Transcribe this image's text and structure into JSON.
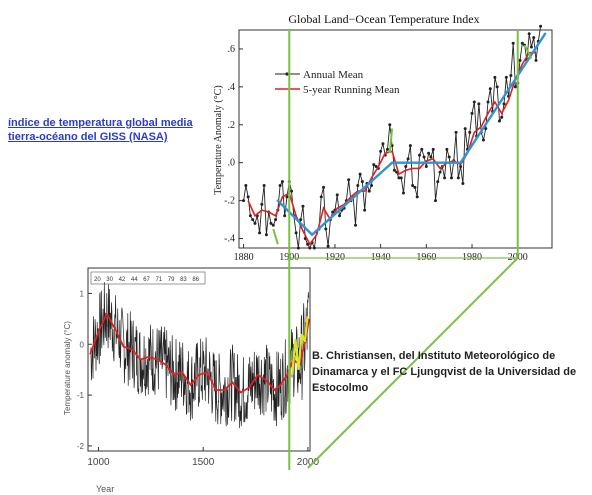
{
  "link_text": "índice de temperatura global media tierra-océano del GISS (NASA)",
  "credit_text": "B. Christiansen, del Instituto Meteorológico de Dinamarca y el FC Ljungqvist de la Universidad de Estocolmo",
  "colors": {
    "annual": "#222222",
    "running": "#dd2222",
    "trend": "#2f93d6",
    "highlight": "#7ac143",
    "link": "#2a3cc8",
    "proxy": "#d8e81c"
  },
  "chart_data": [
    {
      "type": "line",
      "title": "Global Land−Ocean Temperature Index",
      "xlabel": "",
      "ylabel": "Temperature Anomaly (°C)",
      "xlim": [
        1878,
        2015
      ],
      "ylim": [
        -0.45,
        0.7
      ],
      "xticks": [
        "1880",
        "1900",
        "1920",
        "1940",
        "1960",
        "1980",
        "2000"
      ],
      "xtick_values": [
        1880,
        1900,
        1920,
        1940,
        1960,
        1980,
        2000
      ],
      "yticks": [
        ".6",
        ".4",
        ".2",
        ".0",
        "-.2",
        "-.4"
      ],
      "ytick_values": [
        0.6,
        0.4,
        0.2,
        0.0,
        -0.2,
        -0.4
      ],
      "legend_position": "top-left",
      "series": [
        {
          "name": "Annual Mean",
          "x": [
            1880,
            1881,
            1882,
            1883,
            1884,
            1885,
            1886,
            1887,
            1888,
            1889,
            1890,
            1891,
            1892,
            1893,
            1894,
            1895,
            1896,
            1897,
            1898,
            1899,
            1900,
            1901,
            1902,
            1903,
            1904,
            1905,
            1906,
            1907,
            1908,
            1909,
            1910,
            1911,
            1912,
            1913,
            1914,
            1915,
            1916,
            1917,
            1918,
            1919,
            1920,
            1921,
            1922,
            1923,
            1924,
            1925,
            1926,
            1927,
            1928,
            1929,
            1930,
            1931,
            1932,
            1933,
            1934,
            1935,
            1936,
            1937,
            1938,
            1939,
            1940,
            1941,
            1942,
            1943,
            1944,
            1945,
            1946,
            1947,
            1948,
            1949,
            1950,
            1951,
            1952,
            1953,
            1954,
            1955,
            1956,
            1957,
            1958,
            1959,
            1960,
            1961,
            1962,
            1963,
            1964,
            1965,
            1966,
            1967,
            1968,
            1969,
            1970,
            1971,
            1972,
            1973,
            1974,
            1975,
            1976,
            1977,
            1978,
            1979,
            1980,
            1981,
            1982,
            1983,
            1984,
            1985,
            1986,
            1987,
            1988,
            1989,
            1990,
            1991,
            1992,
            1993,
            1994,
            1995,
            1996,
            1997,
            1998,
            1999,
            2000,
            2001,
            2002,
            2003,
            2004,
            2005,
            2006,
            2007,
            2008,
            2009,
            2010
          ],
          "values": [
            -0.2,
            -0.12,
            -0.18,
            -0.28,
            -0.3,
            -0.32,
            -0.28,
            -0.37,
            -0.22,
            -0.12,
            -0.38,
            -0.26,
            -0.32,
            -0.33,
            -0.3,
            -0.25,
            -0.12,
            -0.1,
            -0.28,
            -0.18,
            -0.1,
            -0.15,
            -0.28,
            -0.37,
            -0.45,
            -0.3,
            -0.23,
            -0.4,
            -0.43,
            -0.45,
            -0.42,
            -0.45,
            -0.36,
            -0.35,
            -0.18,
            -0.13,
            -0.35,
            -0.44,
            -0.3,
            -0.26,
            -0.25,
            -0.17,
            -0.28,
            -0.25,
            -0.24,
            -0.2,
            -0.09,
            -0.2,
            -0.18,
            -0.33,
            -0.12,
            -0.06,
            -0.1,
            -0.25,
            -0.11,
            -0.15,
            -0.12,
            -0.01,
            -0.02,
            -0.03,
            0.06,
            0.1,
            0.04,
            0.07,
            0.2,
            0.09,
            -0.04,
            -0.05,
            -0.08,
            -0.08,
            -0.16,
            -0.02,
            0.02,
            0.09,
            -0.12,
            -0.13,
            -0.18,
            0.04,
            0.07,
            0.03,
            -0.02,
            0.05,
            0.03,
            0.07,
            -0.2,
            -0.1,
            -0.05,
            -0.02,
            -0.08,
            0.07,
            0.03,
            -0.08,
            0.01,
            0.16,
            -0.08,
            -0.02,
            -0.11,
            0.18,
            0.07,
            0.16,
            0.26,
            0.32,
            0.14,
            0.31,
            0.16,
            0.12,
            0.18,
            0.32,
            0.39,
            0.27,
            0.45,
            0.4,
            0.22,
            0.24,
            0.31,
            0.45,
            0.35,
            0.46,
            0.63,
            0.4,
            0.42,
            0.54,
            0.63,
            0.62,
            0.54,
            0.68,
            0.61,
            0.66,
            0.54,
            0.64,
            0.72
          ]
        },
        {
          "name": "5-year Running Mean",
          "x": [
            1882,
            1885,
            1888,
            1891,
            1894,
            1897,
            1900,
            1903,
            1906,
            1909,
            1912,
            1915,
            1918,
            1921,
            1924,
            1927,
            1930,
            1933,
            1936,
            1939,
            1942,
            1945,
            1948,
            1951,
            1954,
            1957,
            1960,
            1963,
            1966,
            1969,
            1972,
            1975,
            1978,
            1981,
            1984,
            1987,
            1990,
            1993,
            1996,
            1999,
            2002,
            2005,
            2008
          ],
          "values": [
            -0.2,
            -0.28,
            -0.25,
            -0.26,
            -0.28,
            -0.18,
            -0.16,
            -0.28,
            -0.36,
            -0.43,
            -0.38,
            -0.24,
            -0.3,
            -0.24,
            -0.22,
            -0.18,
            -0.15,
            -0.15,
            -0.08,
            -0.02,
            0.05,
            0.06,
            -0.06,
            -0.04,
            -0.03,
            -0.03,
            0.01,
            0.02,
            -0.03,
            0.0,
            0.01,
            -0.01,
            0.05,
            0.16,
            0.19,
            0.26,
            0.32,
            0.26,
            0.33,
            0.44,
            0.52,
            0.58,
            0.58
          ]
        }
      ]
    },
    {
      "type": "line",
      "title": "",
      "xlabel": "Year",
      "ylabel": "Temperature anomaly (°C)",
      "xlim": [
        950,
        2010
      ],
      "ylim": [
        -2.1,
        1.5
      ],
      "xticks": [
        "1000",
        "1500",
        "2000"
      ],
      "xtick_values": [
        1000,
        1500,
        2000
      ],
      "yticks": [
        "1",
        "0",
        "-1",
        "-2"
      ],
      "ytick_values": [
        1,
        0,
        -1,
        -2
      ],
      "header_labels": [
        "20",
        "30",
        "42",
        "44",
        "67",
        "71",
        "79",
        "83",
        "86"
      ],
      "series": [
        {
          "name": "",
          "x": [
            960,
            1000,
            1040,
            1080,
            1120,
            1160,
            1200,
            1240,
            1280,
            1320,
            1360,
            1400,
            1440,
            1480,
            1520,
            1560,
            1600,
            1640,
            1680,
            1720,
            1760,
            1800,
            1840,
            1870,
            1900,
            1930,
            1960,
            1990,
            2005
          ],
          "values": [
            -0.2,
            0.25,
            0.6,
            0.3,
            -0.05,
            -0.1,
            -0.3,
            -0.25,
            -0.3,
            -0.4,
            -0.6,
            -0.55,
            -0.8,
            -0.6,
            -0.55,
            -0.9,
            -0.9,
            -0.75,
            -0.95,
            -0.85,
            -0.6,
            -0.7,
            -0.9,
            -0.8,
            -0.6,
            -0.3,
            -0.4,
            0.1,
            0.5
          ]
        }
      ]
    }
  ]
}
